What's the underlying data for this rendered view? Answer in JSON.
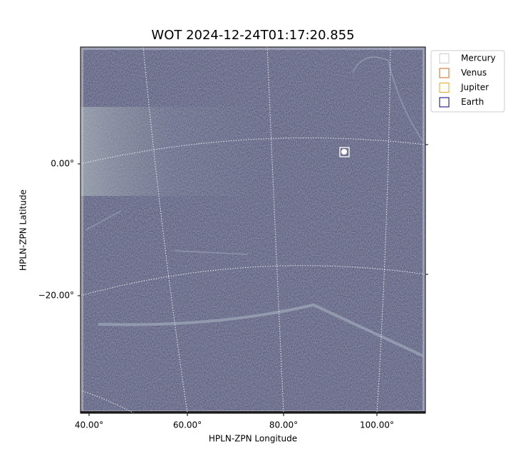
{
  "chart_data": {
    "type": "image",
    "title": "WOT 2024-12-24T01:17:20.855",
    "xlabel": "HPLN-ZPN Longitude",
    "ylabel": "HPLN-ZPN Latitude",
    "xticks": [
      {
        "value": 40,
        "label": "40.00°"
      },
      {
        "value": 60,
        "label": "60.00°"
      },
      {
        "value": 80,
        "label": "80.00°"
      },
      {
        "value": 100,
        "label": "100.00°"
      }
    ],
    "yticks": [
      {
        "value": 0,
        "label": "0.00°"
      },
      {
        "value": -20,
        "label": "−20.00°"
      }
    ],
    "grid": true,
    "legend": "outside upper right",
    "series": [
      {
        "name": "Mercury",
        "color": "#cccccc"
      },
      {
        "name": "Venus",
        "color": "#d2691e"
      },
      {
        "name": "Jupiter",
        "color": "#e6a817"
      },
      {
        "name": "Earth",
        "color": "#000080"
      }
    ]
  }
}
